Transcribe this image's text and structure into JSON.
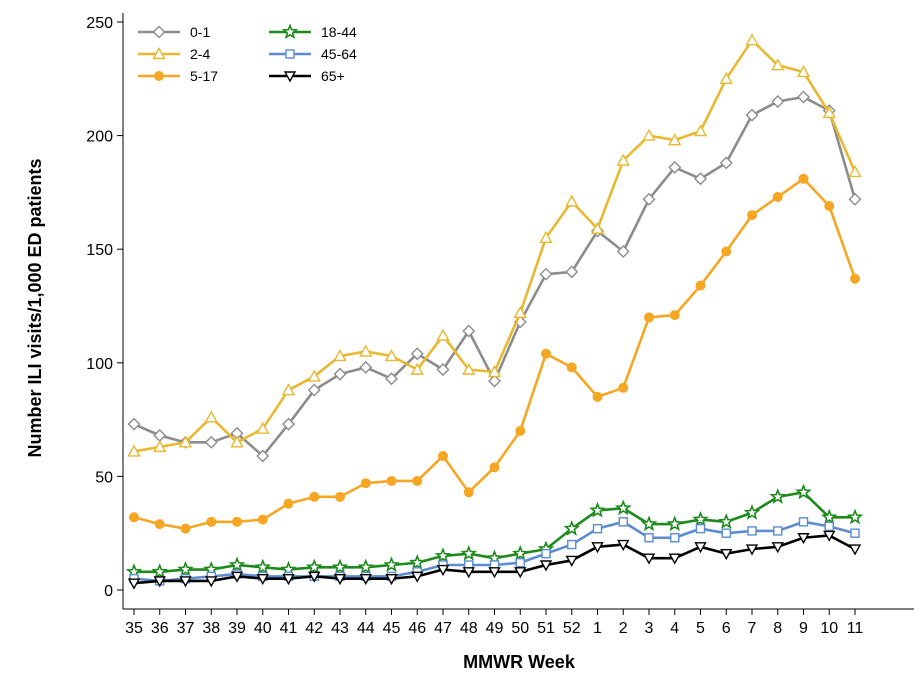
{
  "chart_data": {
    "type": "line",
    "xlabel": "MMWR Week",
    "ylabel": "Number ILI visits/1,000 ED patients",
    "ylim": [
      0,
      250
    ],
    "yticks": [
      0,
      50,
      100,
      150,
      200,
      250
    ],
    "grid": false,
    "legend_position": "top-left",
    "categories": [
      "35",
      "36",
      "37",
      "38",
      "39",
      "40",
      "41",
      "42",
      "43",
      "44",
      "45",
      "46",
      "47",
      "48",
      "49",
      "50",
      "51",
      "52",
      "1",
      "2",
      "3",
      "4",
      "5",
      "6",
      "7",
      "8",
      "9",
      "10",
      "11"
    ],
    "series": [
      {
        "name": "0-1",
        "color": "#8c8c8c",
        "marker": "diamond-open",
        "values": [
          73,
          68,
          65,
          65,
          69,
          59,
          73,
          88,
          95,
          98,
          93,
          104,
          97,
          114,
          92,
          118,
          139,
          140,
          158,
          149,
          172,
          186,
          181,
          188,
          209,
          215,
          217,
          211,
          172
        ]
      },
      {
        "name": "2-4",
        "color": "#e8b830",
        "marker": "triangle-open",
        "values": [
          61,
          63,
          65,
          76,
          65,
          71,
          88,
          94,
          103,
          105,
          103,
          97,
          112,
          97,
          96,
          122,
          155,
          171,
          159,
          189,
          200,
          198,
          202,
          225,
          242,
          231,
          228,
          210,
          184
        ]
      },
      {
        "name": "5-17",
        "color": "#f5a623",
        "marker": "circle-filled",
        "values": [
          32,
          29,
          27,
          30,
          30,
          31,
          38,
          41,
          41,
          47,
          48,
          48,
          59,
          43,
          54,
          70,
          104,
          98,
          85,
          89,
          120,
          121,
          134,
          149,
          165,
          173,
          181,
          169,
          137
        ]
      },
      {
        "name": "18-44",
        "color": "#1e8a1e",
        "marker": "star-open",
        "values": [
          8,
          8,
          9,
          9,
          11,
          10,
          9,
          10,
          10,
          10,
          11,
          12,
          15,
          16,
          14,
          16,
          18,
          27,
          35,
          36,
          29,
          29,
          31,
          30,
          34,
          41,
          43,
          32,
          32
        ]
      },
      {
        "name": "45-64",
        "color": "#5b8ccf",
        "marker": "square-open",
        "values": [
          5,
          4,
          5,
          6,
          7,
          6,
          6,
          6,
          6,
          6,
          6,
          8,
          11,
          11,
          11,
          12,
          16,
          20,
          27,
          30,
          23,
          23,
          27,
          25,
          26,
          26,
          30,
          28,
          25
        ]
      },
      {
        "name": "65+",
        "color": "#000000",
        "marker": "triangle-down-open",
        "values": [
          3,
          4,
          4,
          4,
          6,
          5,
          5,
          6,
          5,
          5,
          5,
          6,
          9,
          8,
          8,
          8,
          11,
          13,
          19,
          20,
          14,
          14,
          19,
          16,
          18,
          19,
          23,
          24,
          18
        ]
      }
    ]
  }
}
